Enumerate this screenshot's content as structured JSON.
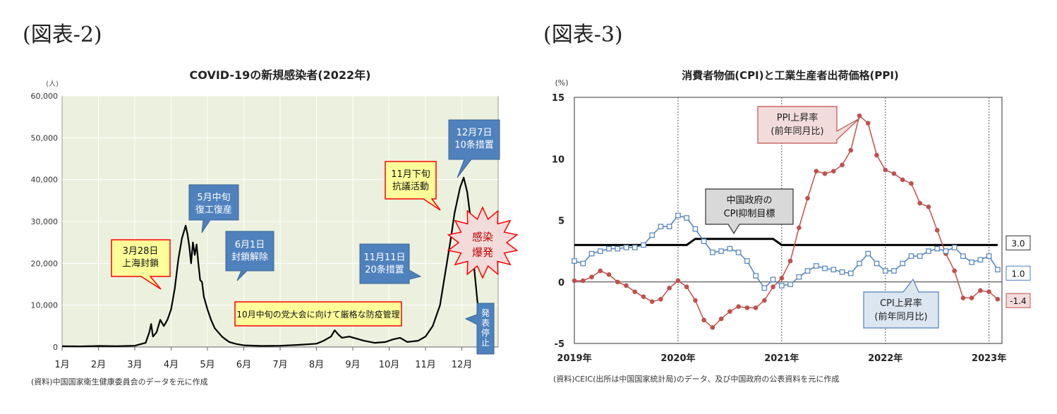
{
  "figures": [
    {
      "label": "(図表-2)"
    },
    {
      "label": "(図表-3)"
    }
  ],
  "chart_data": [
    {
      "type": "area",
      "title": "COVID-19の新規感染者(2022年)",
      "ylabel": "(人)",
      "ylim": [
        0,
        60000
      ],
      "yticks": [
        "0",
        "10,000",
        "20,000",
        "30,000",
        "40,000",
        "50,000",
        "60,000"
      ],
      "ytick_values": [
        0,
        10000,
        20000,
        30000,
        40000,
        50000,
        60000
      ],
      "categories": [
        "1月",
        "2月",
        "3月",
        "4月",
        "5月",
        "6月",
        "7月",
        "8月",
        "9月",
        "10月",
        "11月",
        "12月"
      ],
      "grid": true,
      "series": [
        {
          "values_month_pairs": [
            [
              0.0,
              200
            ],
            [
              0.5,
              150
            ],
            [
              1.0,
              250
            ],
            [
              1.5,
              200
            ],
            [
              2.0,
              300
            ],
            [
              2.3,
              1000
            ],
            [
              2.4,
              3500
            ],
            [
              2.45,
              5500
            ],
            [
              2.5,
              2500
            ],
            [
              2.6,
              3500
            ],
            [
              2.7,
              6500
            ],
            [
              2.8,
              5000
            ],
            [
              2.9,
              6500
            ],
            [
              3.0,
              9000
            ],
            [
              3.1,
              14000
            ],
            [
              3.2,
              21000
            ],
            [
              3.3,
              26000
            ],
            [
              3.4,
              29000
            ],
            [
              3.45,
              27000
            ],
            [
              3.5,
              24000
            ],
            [
              3.55,
              20000
            ],
            [
              3.6,
              25000
            ],
            [
              3.65,
              22000
            ],
            [
              3.7,
              24500
            ],
            [
              3.75,
              20000
            ],
            [
              3.8,
              16000
            ],
            [
              3.85,
              15500
            ],
            [
              3.9,
              12000
            ],
            [
              4.0,
              9000
            ],
            [
              4.1,
              6500
            ],
            [
              4.2,
              4500
            ],
            [
              4.3,
              3500
            ],
            [
              4.4,
              2500
            ],
            [
              4.5,
              1800
            ],
            [
              4.6,
              1200
            ],
            [
              4.8,
              700
            ],
            [
              5.0,
              400
            ],
            [
              5.5,
              250
            ],
            [
              6.0,
              300
            ],
            [
              6.5,
              500
            ],
            [
              7.0,
              800
            ],
            [
              7.2,
              1500
            ],
            [
              7.4,
              2500
            ],
            [
              7.5,
              4000
            ],
            [
              7.6,
              3000
            ],
            [
              7.7,
              2200
            ],
            [
              7.9,
              2500
            ],
            [
              8.1,
              2000
            ],
            [
              8.3,
              1500
            ],
            [
              8.6,
              1000
            ],
            [
              8.9,
              1200
            ],
            [
              9.1,
              1800
            ],
            [
              9.3,
              2200
            ],
            [
              9.5,
              1200
            ],
            [
              9.8,
              1500
            ],
            [
              10.0,
              2500
            ],
            [
              10.2,
              5000
            ],
            [
              10.4,
              10000
            ],
            [
              10.55,
              18000
            ],
            [
              10.7,
              26000
            ],
            [
              10.8,
              32000
            ],
            [
              10.95,
              38000
            ],
            [
              11.05,
              40500
            ],
            [
              11.15,
              37000
            ],
            [
              11.25,
              30000
            ],
            [
              11.35,
              18000
            ],
            [
              11.45,
              9000
            ],
            [
              11.55,
              6500
            ]
          ]
        }
      ],
      "annotations": [
        {
          "text": [
            "3月28日",
            "上海封鎖"
          ],
          "style": "yellow"
        },
        {
          "text": [
            "5月中旬",
            "復工復産"
          ],
          "style": "blue"
        },
        {
          "text": [
            "6月1日",
            "封鎖解除"
          ],
          "style": "blue"
        },
        {
          "text": [
            "10月中旬の党大会に向けて厳格な防疫管理"
          ],
          "style": "yellow"
        },
        {
          "text": [
            "11月11日",
            "20条措置"
          ],
          "style": "blue"
        },
        {
          "text": [
            "11月下旬",
            "抗議活動"
          ],
          "style": "yellow"
        },
        {
          "text": [
            "12月7日",
            "10条措置"
          ],
          "style": "blue"
        },
        {
          "text": [
            "感染",
            "爆発"
          ],
          "style": "burst"
        },
        {
          "text": [
            "発表停止"
          ],
          "style": "blue-vertical"
        }
      ],
      "source": "(資料)中国国家衛生健康委員会のデータを元に作成"
    },
    {
      "type": "line",
      "title": "消費者物価(CPI)と工業生産者出荷価格(PPI)",
      "ylabel": "(%)",
      "ylim": [
        -5,
        15
      ],
      "yticks": [
        "-5",
        "0",
        "5",
        "10",
        "15"
      ],
      "ytick_values": [
        -5,
        0,
        5,
        10,
        15
      ],
      "xticks": [
        "2019年",
        "2020年",
        "2021年",
        "2022年",
        "2023年"
      ],
      "grid": true,
      "series": [
        {
          "name": "CPI上昇率(前年同月比)",
          "color": "#4f81bd",
          "marker": "square",
          "start": "2019-01",
          "values": [
            1.7,
            1.5,
            2.3,
            2.5,
            2.7,
            2.7,
            2.8,
            2.8,
            3.0,
            3.8,
            4.5,
            4.5,
            5.4,
            5.2,
            4.3,
            3.3,
            2.4,
            2.5,
            2.7,
            2.4,
            1.7,
            0.5,
            -0.5,
            0.2,
            -0.3,
            -0.2,
            0.4,
            0.9,
            1.3,
            1.1,
            1.0,
            0.8,
            0.7,
            1.5,
            2.3,
            1.5,
            0.9,
            0.9,
            1.5,
            2.1,
            2.1,
            2.5,
            2.7,
            2.5,
            2.8,
            2.1,
            1.6,
            1.8,
            2.1,
            1.0
          ]
        },
        {
          "name": "PPI上昇率(前年同月比)",
          "color": "#c0504d",
          "marker": "circle",
          "start": "2019-01",
          "values": [
            0.1,
            0.1,
            0.4,
            0.9,
            0.6,
            0.0,
            -0.3,
            -0.8,
            -1.2,
            -1.6,
            -1.4,
            -0.5,
            0.1,
            -0.4,
            -1.5,
            -3.1,
            -3.7,
            -3.0,
            -2.4,
            -2.0,
            -2.1,
            -2.1,
            -1.5,
            -0.4,
            0.3,
            1.7,
            4.4,
            6.8,
            9.0,
            8.8,
            9.0,
            9.5,
            10.7,
            13.5,
            12.9,
            10.3,
            9.1,
            8.8,
            8.3,
            8.0,
            6.4,
            6.1,
            4.2,
            2.3,
            0.9,
            -1.3,
            -1.3,
            -0.7,
            -0.8,
            -1.4
          ]
        },
        {
          "name": "中国政府のCPI抑制目標",
          "color": "#000000",
          "marker": "none",
          "start": "2019-01",
          "values": [
            3.0,
            3.0,
            3.0,
            3.0,
            3.0,
            3.0,
            3.0,
            3.0,
            3.0,
            3.0,
            3.0,
            3.0,
            3.0,
            3.0,
            3.5,
            3.5,
            3.5,
            3.5,
            3.5,
            3.5,
            3.5,
            3.5,
            3.5,
            3.5,
            3.0,
            3.0,
            3.0,
            3.0,
            3.0,
            3.0,
            3.0,
            3.0,
            3.0,
            3.0,
            3.0,
            3.0,
            3.0,
            3.0,
            3.0,
            3.0,
            3.0,
            3.0,
            3.0,
            3.0,
            3.0,
            3.0,
            3.0,
            3.0,
            3.0,
            3.0
          ]
        }
      ],
      "callouts": [
        {
          "text": [
            "PPI上昇率",
            "(前年同月比)"
          ],
          "style": "red"
        },
        {
          "text": [
            "中国政府の",
            "CPI抑制目標"
          ],
          "style": "gray"
        },
        {
          "text": [
            "CPI上昇率",
            "(前年同月比)"
          ],
          "style": "blue"
        }
      ],
      "end_labels": [
        "3.0",
        "1.0",
        "-1.4"
      ],
      "source": "(資料)CEIC(出所は中国国家統計局)のデータ、及び中国政府の公表資料を元に作成"
    }
  ]
}
